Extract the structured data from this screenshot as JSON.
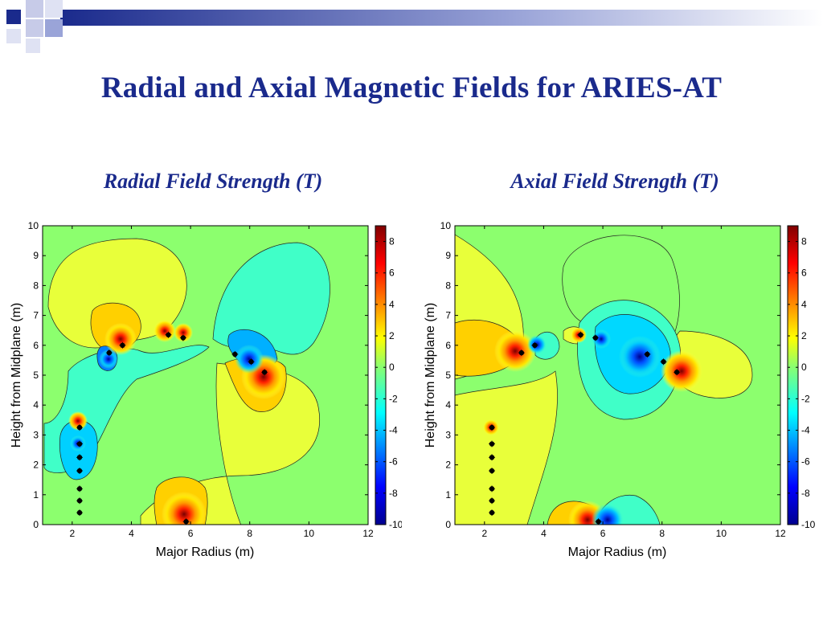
{
  "slide": {
    "title": "Radial and Axial Magnetic Fields for ARIES-AT"
  },
  "colors": {
    "title": "#1a2a8c",
    "background_field": "#8cff6e"
  },
  "chart_data": [
    {
      "type": "heatmap",
      "title": "Radial Field Strength (T)",
      "xlabel": "Major Radius (m)",
      "ylabel": "Height from Midplane (m)",
      "xlim": [
        1,
        12
      ],
      "ylim": [
        0,
        10
      ],
      "xticks": [
        2,
        4,
        6,
        8,
        10,
        12
      ],
      "yticks": [
        0,
        1,
        2,
        3,
        4,
        5,
        6,
        7,
        8,
        9,
        10
      ],
      "colorbar": {
        "min": -10,
        "max": 9,
        "ticks": [
          8,
          6,
          4,
          2,
          0,
          -2,
          -4,
          -6,
          -8,
          -10
        ]
      },
      "coil_positions": [
        [
          3.25,
          5.75
        ],
        [
          3.7,
          6.0
        ],
        [
          5.25,
          6.35
        ],
        [
          5.75,
          6.25
        ],
        [
          7.5,
          5.7
        ],
        [
          8.05,
          5.45
        ],
        [
          8.5,
          5.1
        ],
        [
          5.85,
          0.1
        ],
        [
          2.25,
          3.25
        ],
        [
          2.25,
          2.7
        ],
        [
          2.25,
          2.25
        ],
        [
          2.25,
          1.8
        ],
        [
          2.25,
          1.2
        ],
        [
          2.25,
          0.8
        ],
        [
          2.25,
          0.4
        ]
      ]
    },
    {
      "type": "heatmap",
      "title": "Axial Field Strength (T)",
      "xlabel": "Major Radius (m)",
      "ylabel": "Height from Midplane (m)",
      "xlim": [
        1,
        12
      ],
      "ylim": [
        0,
        10
      ],
      "xticks": [
        2,
        4,
        6,
        8,
        10,
        12
      ],
      "yticks": [
        0,
        1,
        2,
        3,
        4,
        5,
        6,
        7,
        8,
        9,
        10
      ],
      "colorbar": {
        "min": -10,
        "max": 9,
        "ticks": [
          8,
          6,
          4,
          2,
          0,
          -2,
          -4,
          -6,
          -8,
          -10
        ]
      },
      "coil_positions": [
        [
          3.25,
          5.75
        ],
        [
          3.7,
          6.0
        ],
        [
          5.25,
          6.35
        ],
        [
          5.75,
          6.25
        ],
        [
          7.5,
          5.7
        ],
        [
          8.05,
          5.45
        ],
        [
          8.5,
          5.1
        ],
        [
          5.85,
          0.1
        ],
        [
          2.25,
          3.25
        ],
        [
          2.25,
          2.7
        ],
        [
          2.25,
          2.25
        ],
        [
          2.25,
          1.8
        ],
        [
          2.25,
          1.2
        ],
        [
          2.25,
          0.8
        ],
        [
          2.25,
          0.4
        ]
      ]
    }
  ]
}
